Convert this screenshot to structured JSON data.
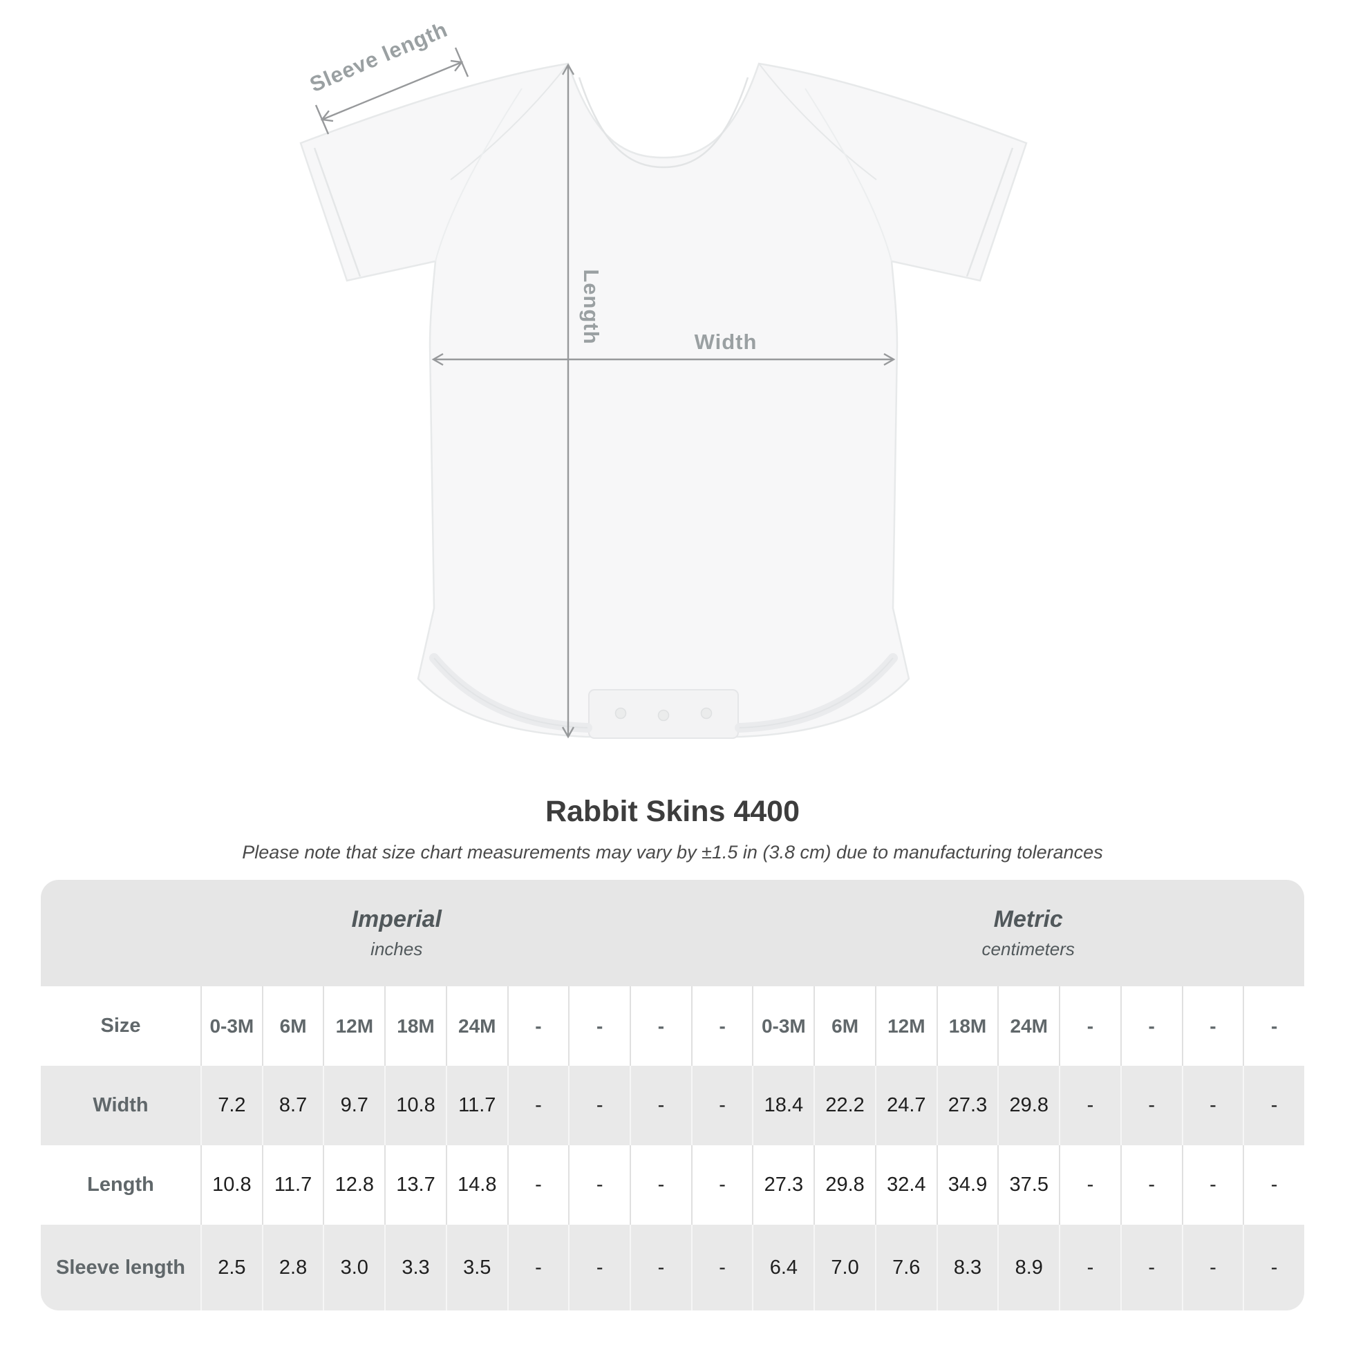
{
  "diagram": {
    "sleeve_label": "Sleeve length",
    "length_label": "Length",
    "width_label": "Width"
  },
  "title": "Rabbit Skins 4400",
  "note": "Please note that size chart measurements may vary by ±1.5 in (3.8 cm) due to manufacturing tolerances",
  "table": {
    "units": [
      {
        "title": "Imperial",
        "subtitle": "inches"
      },
      {
        "title": "Metric",
        "subtitle": "centimeters"
      }
    ],
    "header": {
      "label": "Size",
      "imperial": [
        "0-3M",
        "6M",
        "12M",
        "18M",
        "24M",
        "-",
        "-",
        "-",
        "-"
      ],
      "metric": [
        "0-3M",
        "6M",
        "12M",
        "18M",
        "24M",
        "-",
        "-",
        "-",
        "-"
      ]
    },
    "rows": [
      {
        "label": "Width",
        "imperial": [
          "7.2",
          "8.7",
          "9.7",
          "10.8",
          "11.7",
          "-",
          "-",
          "-",
          "-"
        ],
        "metric": [
          "18.4",
          "22.2",
          "24.7",
          "27.3",
          "29.8",
          "-",
          "-",
          "-",
          "-"
        ]
      },
      {
        "label": "Length",
        "imperial": [
          "10.8",
          "11.7",
          "12.8",
          "13.7",
          "14.8",
          "-",
          "-",
          "-",
          "-"
        ],
        "metric": [
          "27.3",
          "29.8",
          "32.4",
          "34.9",
          "37.5",
          "-",
          "-",
          "-",
          "-"
        ]
      },
      {
        "label": "Sleeve length",
        "imperial": [
          "2.5",
          "2.8",
          "3.0",
          "3.3",
          "3.5",
          "-",
          "-",
          "-",
          "-"
        ],
        "metric": [
          "6.4",
          "7.0",
          "7.6",
          "8.3",
          "8.9",
          "-",
          "-",
          "-",
          "-"
        ]
      }
    ]
  },
  "colors": {
    "band_gray": "#e6e6e6",
    "row_gray": "#e9e9e9",
    "header_text": "#60676a",
    "value_text": "#1e1e1e",
    "title_text": "#3d3d3d",
    "diagram_gray": "#9aa0a2",
    "arrow_gray": "#97999b"
  }
}
